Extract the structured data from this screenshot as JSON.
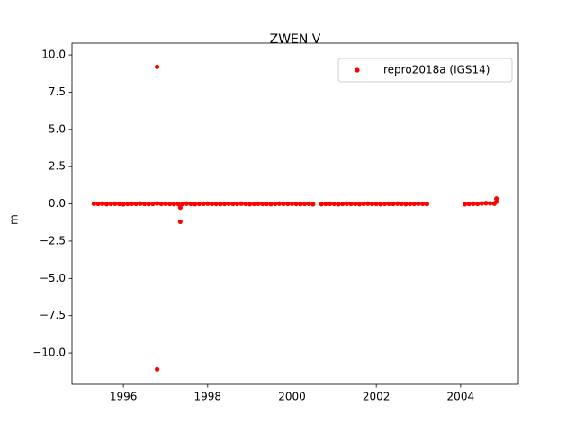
{
  "chart_data": {
    "type": "scatter",
    "title": "ZWEN V",
    "y_label": "m",
    "x": [
      1995.3,
      1995.4,
      1995.5,
      1995.6,
      1995.7,
      1995.8,
      1995.9,
      1996.0,
      1996.1,
      1996.2,
      1996.3,
      1996.4,
      1996.5,
      1996.6,
      1996.7,
      1996.8,
      1996.9,
      1997.0,
      1997.1,
      1997.2,
      1997.3,
      1997.4,
      1997.5,
      1997.6,
      1997.7,
      1997.8,
      1997.9,
      1998.0,
      1998.1,
      1998.2,
      1998.3,
      1998.4,
      1998.5,
      1998.6,
      1998.7,
      1998.8,
      1998.9,
      1999.0,
      1999.1,
      1999.2,
      1999.3,
      1999.4,
      1999.5,
      1999.6,
      1999.7,
      1999.8,
      1999.9,
      2000.0,
      2000.1,
      2000.2,
      2000.3,
      2000.4,
      2000.5,
      2000.7,
      2000.8,
      2000.9,
      2001.0,
      2001.1,
      2001.2,
      2001.3,
      2001.4,
      2001.5,
      2001.6,
      2001.7,
      2001.8,
      2001.9,
      2002.0,
      2002.1,
      2002.2,
      2002.3,
      2002.4,
      2002.5,
      2002.6,
      2002.7,
      2002.8,
      2002.9,
      2003.0,
      2003.1,
      2003.2,
      2004.1,
      2004.2,
      2004.3,
      2004.4,
      2004.5,
      2004.6,
      2004.7,
      2004.8,
      2004.85,
      2004.85,
      1996.8,
      1996.8,
      1997.35,
      1997.35
    ],
    "series": [
      {
        "name": "repro2018a (IGS14)",
        "color": "#ff0000",
        "values": [
          0.01,
          0,
          0.02,
          -0.01,
          0,
          0.01,
          0,
          -0.02,
          0,
          0.01,
          0,
          0.02,
          0,
          -0.01,
          0,
          0.03,
          0,
          0.01,
          0,
          -0.01,
          0,
          0,
          0.02,
          0,
          -0.01,
          0,
          0.01,
          0.02,
          0,
          0,
          -0.01,
          0,
          0.01,
          0,
          0,
          0.02,
          0,
          -0.01,
          0,
          0.01,
          0,
          0,
          -0.01,
          0,
          0.02,
          0,
          0,
          0.01,
          0,
          -0.01,
          0,
          0.01,
          -0.02,
          -0.01,
          0,
          0.01,
          0,
          -0.02,
          0,
          0.01,
          0,
          0,
          -0.01,
          0,
          0.02,
          0,
          0,
          -0.01,
          0,
          0.01,
          0,
          0.02,
          0,
          -0.01,
          0,
          0,
          0.01,
          0,
          -0.01,
          -0.02,
          0,
          0.01,
          0,
          0.03,
          0.05,
          0.04,
          0.02,
          0.35,
          0.15,
          9.2,
          -11.1,
          -0.25,
          -1.2
        ]
      }
    ],
    "xlim": [
      1994.78,
      2005.37
    ],
    "ylim": [
      -12.11,
      10.79
    ],
    "xticks": [
      1996,
      1998,
      2000,
      2002,
      2004
    ],
    "yticks": [
      {
        "value": 10,
        "label": "10.0"
      },
      {
        "value": 7.5,
        "label": "7.5"
      },
      {
        "value": 5,
        "label": "5.0"
      },
      {
        "value": 2.5,
        "label": "2.5"
      },
      {
        "value": 0,
        "label": "0.0"
      },
      {
        "value": -2.5,
        "label": "−2.5"
      },
      {
        "value": -5,
        "label": "−5.0"
      },
      {
        "value": -7.5,
        "label": "−7.5"
      },
      {
        "value": -10,
        "label": "−10.0"
      }
    ],
    "grid": false,
    "legend_position": "upper right"
  }
}
